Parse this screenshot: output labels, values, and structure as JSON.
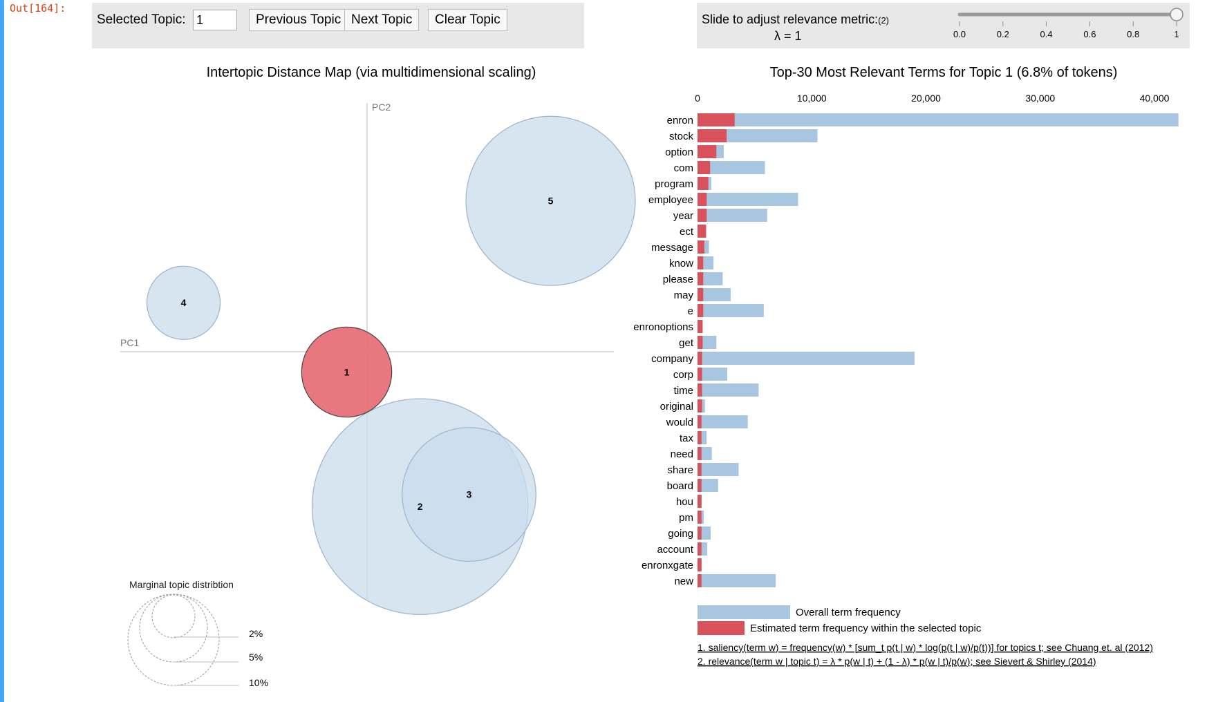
{
  "prompt": "Out[164]:",
  "controls": {
    "selected_topic_label": "Selected Topic:",
    "selected_topic_value": "1",
    "prev_label": "Previous Topic",
    "next_label": "Next Topic",
    "clear_label": "Clear Topic"
  },
  "slider": {
    "label": "Slide to adjust relevance metric:",
    "footnote_mark": "(2)",
    "lambda_text": "λ = 1",
    "value": 1,
    "ticks": [
      "0.0",
      "0.2",
      "0.4",
      "0.6",
      "0.8",
      "1"
    ]
  },
  "colors": {
    "overall": "#a8c6e0",
    "topic_bar": "#d9525b",
    "selected_circle": "#e77078",
    "unselected_circle": "#c9dcec",
    "accent": "#d84315"
  },
  "map": {
    "title": "Intertopic Distance Map (via multidimensional scaling)",
    "pc1_label": "PC1",
    "pc2_label": "PC2",
    "legend_title": "Marginal topic distribtion",
    "legend_labels": [
      "2%",
      "5%",
      "10%"
    ]
  },
  "chart_data": [
    {
      "type": "scatter",
      "title": "Intertopic Distance Map (via multidimensional scaling)",
      "xlabel": "PC1",
      "ylabel": "PC2",
      "selected_topic": 1,
      "topics": [
        {
          "id": "1",
          "pc1": -0.05,
          "pc2": -0.05,
          "share": 0.068,
          "selected": true
        },
        {
          "id": "2",
          "pc1": 0.13,
          "pc2": -0.38,
          "share": 0.39,
          "selected": false
        },
        {
          "id": "3",
          "pc1": 0.25,
          "pc2": -0.35,
          "share": 0.15,
          "selected": false
        },
        {
          "id": "4",
          "pc1": -0.45,
          "pc2": 0.12,
          "share": 0.045,
          "selected": false
        },
        {
          "id": "5",
          "pc1": 0.45,
          "pc2": 0.37,
          "share": 0.24,
          "selected": false
        }
      ]
    },
    {
      "type": "bar",
      "title": "Top-30 Most Relevant Terms for Topic 1 (6.8% of tokens)",
      "xlim": [
        0,
        44000
      ],
      "ticks": [
        0,
        10000,
        20000,
        30000,
        40000
      ],
      "tick_labels": [
        "0",
        "10,000",
        "20,000",
        "30,000",
        "40,000"
      ],
      "categories": [
        "enron",
        "stock",
        "option",
        "com",
        "program",
        "employee",
        "year",
        "ect",
        "message",
        "know",
        "please",
        "may",
        "e",
        "enronoptions",
        "get",
        "company",
        "corp",
        "time",
        "original",
        "would",
        "tax",
        "need",
        "share",
        "board",
        "hou",
        "pm",
        "going",
        "account",
        "enronxgate",
        "new"
      ],
      "series": [
        {
          "name": "Overall term frequency",
          "values": [
            42100,
            10500,
            2300,
            5900,
            1200,
            8800,
            6100,
            750,
            1000,
            1400,
            2200,
            2900,
            5800,
            450,
            1650,
            19000,
            2600,
            5350,
            650,
            4400,
            800,
            1250,
            3600,
            1800,
            350,
            550,
            1150,
            850,
            350,
            6850
          ]
        },
        {
          "name": "Estimated term frequency within the selected topic",
          "values": [
            3250,
            2550,
            1650,
            1100,
            950,
            800,
            800,
            750,
            600,
            500,
            500,
            500,
            500,
            450,
            450,
            400,
            400,
            400,
            400,
            350,
            350,
            350,
            350,
            350,
            350,
            350,
            350,
            350,
            350,
            350
          ]
        }
      ]
    }
  ],
  "bar_legend": {
    "overall": "Overall term frequency",
    "topic": "Estimated term frequency within the selected topic"
  },
  "footnotes": [
    "1. saliency(term w) = frequency(w) * [sum_t p(t | w) * log(p(t | w)/p(t))] for topics t; see Chuang et. al (2012)",
    "2. relevance(term w | topic t) = λ * p(w | t) + (1 - λ) * p(w | t)/p(w); see Sievert & Shirley (2014)"
  ]
}
